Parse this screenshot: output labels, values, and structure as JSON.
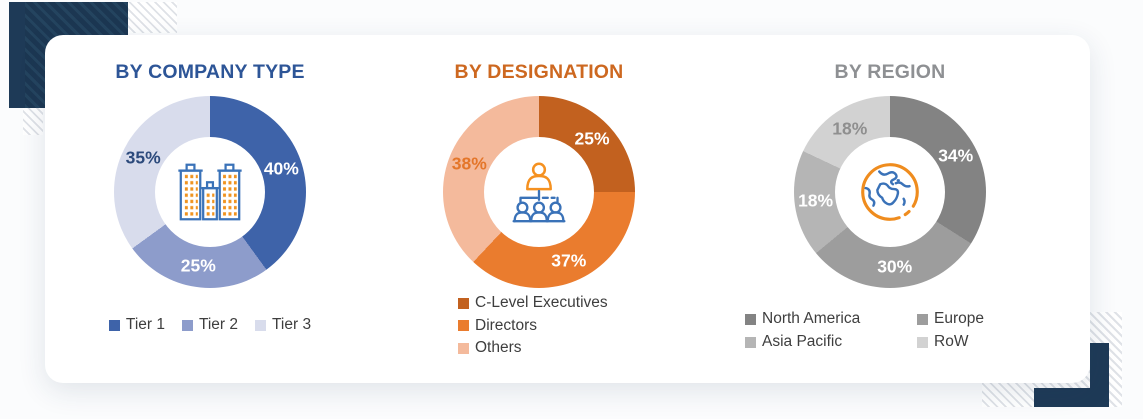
{
  "decor": {
    "navy": "#1e3a57",
    "light_stripe": "#dfe2e7"
  },
  "chart_data": [
    {
      "type": "pie",
      "subtype": "donut",
      "title": "BY COMPANY TYPE",
      "title_color": "#2d5597",
      "labels": [
        "Tier 1",
        "Tier 2",
        "Tier 3"
      ],
      "values": [
        40,
        25,
        35
      ],
      "unit": "percent",
      "colors": [
        "#3e63a9",
        "#8d9ccb",
        "#d8dcec"
      ],
      "data_labels": [
        "40%",
        "25%",
        "35%"
      ],
      "data_label_colors": [
        "#ffffff",
        "#ffffff",
        "#2c4a7c"
      ],
      "start_angle_deg": 0,
      "direction": "clockwise",
      "center_icon": "buildings-icon",
      "legend_position": "bottom-row"
    },
    {
      "type": "pie",
      "subtype": "donut",
      "title": "BY DESIGNATION",
      "title_color": "#cd6820",
      "labels": [
        "C-Level Executives",
        "Directors",
        "Others"
      ],
      "values": [
        25,
        37,
        38
      ],
      "unit": "percent",
      "colors": [
        "#c2611f",
        "#ea7c2e",
        "#f4ba9c"
      ],
      "data_labels": [
        "25%",
        "37%",
        "38%"
      ],
      "data_label_colors": [
        "#ffffff",
        "#ffffff",
        "#e4762a"
      ],
      "start_angle_deg": 0,
      "direction": "clockwise",
      "center_icon": "org-chart-icon",
      "legend_position": "bottom-column"
    },
    {
      "type": "pie",
      "subtype": "donut",
      "title": "BY REGION",
      "title_color": "#8e9093",
      "labels": [
        "North America",
        "Europe",
        "Asia Pacific",
        "RoW"
      ],
      "values": [
        34,
        30,
        18,
        18
      ],
      "unit": "percent",
      "colors": [
        "#838383",
        "#9d9d9d",
        "#b5b5b5",
        "#d2d2d2"
      ],
      "data_labels": [
        "34%",
        "30%",
        "18%",
        "18%"
      ],
      "data_label_colors": [
        "#ffffff",
        "#ffffff",
        "#ffffff",
        "#8f8f8f"
      ],
      "start_angle_deg": 0,
      "direction": "clockwise",
      "center_icon": "globe-icon",
      "legend_position": "bottom-grid-2col"
    }
  ]
}
